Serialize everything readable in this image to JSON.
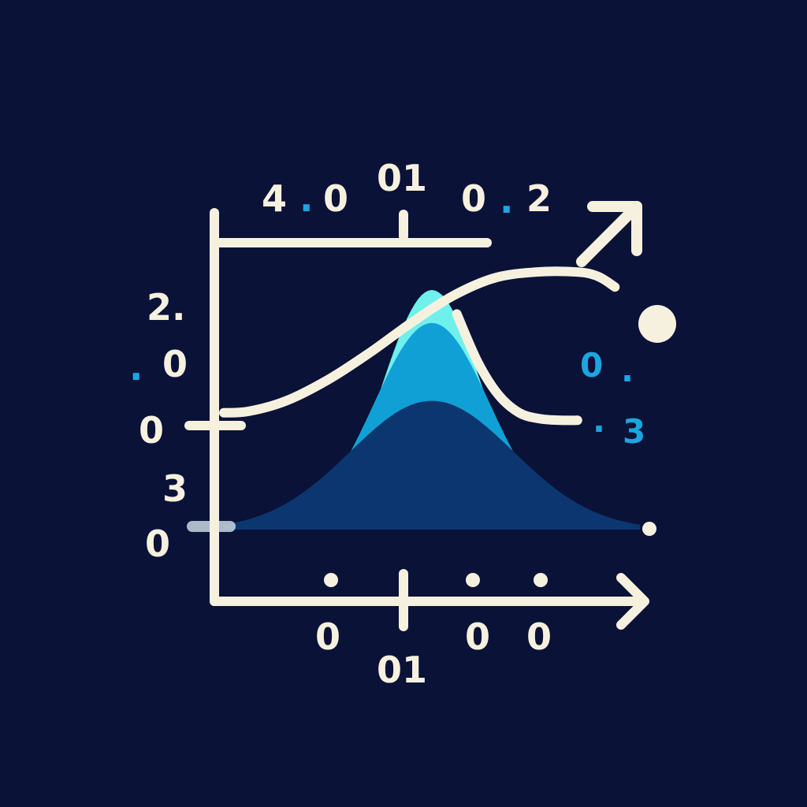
{
  "colors": {
    "background": "#0a1238",
    "axis": "#f6f1de",
    "accent": "#1aa6e0",
    "fill_light": "#6ff0ec",
    "fill_mid": "#11a0d6",
    "fill_dark": "#0c3670"
  },
  "chart_data": {
    "type": "area",
    "title": "",
    "xlabel": "",
    "ylabel": "",
    "x_range": [
      0,
      10
    ],
    "y_range": [
      0,
      10
    ],
    "top_labels": [
      {
        "id": "top-label-1",
        "text": "4",
        "color": "axis"
      },
      {
        "id": "top-dot-1",
        "text": ".",
        "color": "accent"
      },
      {
        "id": "top-label-2",
        "text": "0",
        "color": "axis"
      },
      {
        "id": "top-label-3",
        "text": "01",
        "color": "axis"
      },
      {
        "id": "top-label-4",
        "text": "0",
        "color": "axis"
      },
      {
        "id": "top-dot-2",
        "text": ".",
        "color": "accent"
      },
      {
        "id": "top-label-5",
        "text": "2",
        "color": "axis"
      }
    ],
    "left_labels": [
      {
        "id": "left-label-1",
        "text": "2.",
        "color": "axis"
      },
      {
        "id": "left-dot-1",
        "text": ".",
        "color": "accent"
      },
      {
        "id": "left-label-2",
        "text": "0",
        "color": "axis"
      },
      {
        "id": "left-label-3",
        "text": "0",
        "color": "axis"
      },
      {
        "id": "left-label-4",
        "text": "3",
        "color": "axis"
      },
      {
        "id": "left-label-5",
        "text": "0",
        "color": "axis"
      }
    ],
    "right_labels": [
      {
        "id": "right-label-1",
        "text": "0",
        "color": "accent"
      },
      {
        "id": "right-dot-1",
        "text": ".",
        "color": "accent"
      },
      {
        "id": "right-dot-2",
        "text": ".",
        "color": "accent"
      },
      {
        "id": "right-label-2",
        "text": "3",
        "color": "accent"
      }
    ],
    "bottom_labels": [
      {
        "id": "bottom-label-1",
        "text": "0",
        "color": "axis"
      },
      {
        "id": "bottom-label-2",
        "text": "01",
        "color": "axis"
      },
      {
        "id": "bottom-label-3",
        "text": "0",
        "color": "axis"
      },
      {
        "id": "bottom-label-4",
        "text": "0",
        "color": "axis"
      }
    ],
    "series": [
      {
        "name": "peak-light",
        "kind": "gaussian-area",
        "color": "fill_light",
        "amplitude": 8.0,
        "center": 5.0,
        "width": 0.85,
        "base": 2.6
      },
      {
        "name": "peak-mid",
        "kind": "gaussian-area",
        "color": "fill_mid",
        "amplitude": 6.9,
        "center": 5.0,
        "width": 1.0,
        "base": 2.6
      },
      {
        "name": "peak-dark",
        "kind": "gaussian-area",
        "color": "fill_dark",
        "amplitude": 4.3,
        "center": 5.0,
        "width": 1.4,
        "base": 2.6
      },
      {
        "name": "trend-curve",
        "kind": "line",
        "color": "axis",
        "x": [
          0,
          0.6,
          1.5,
          2.5,
          3.5,
          4.5,
          5.5,
          6.5,
          7.5,
          8.5,
          9.0,
          9.4
        ],
        "y": [
          3.9,
          3.95,
          4.3,
          5.0,
          5.9,
          6.9,
          7.8,
          8.4,
          8.6,
          8.6,
          8.45,
          8.1
        ]
      },
      {
        "name": "falling-curve",
        "kind": "line",
        "color": "axis",
        "x": [
          5.6,
          6.1,
          6.6,
          7.1,
          7.6,
          8.1,
          8.5
        ],
        "y": [
          7.2,
          5.6,
          4.5,
          3.9,
          3.7,
          3.65,
          3.65
        ]
      }
    ]
  }
}
